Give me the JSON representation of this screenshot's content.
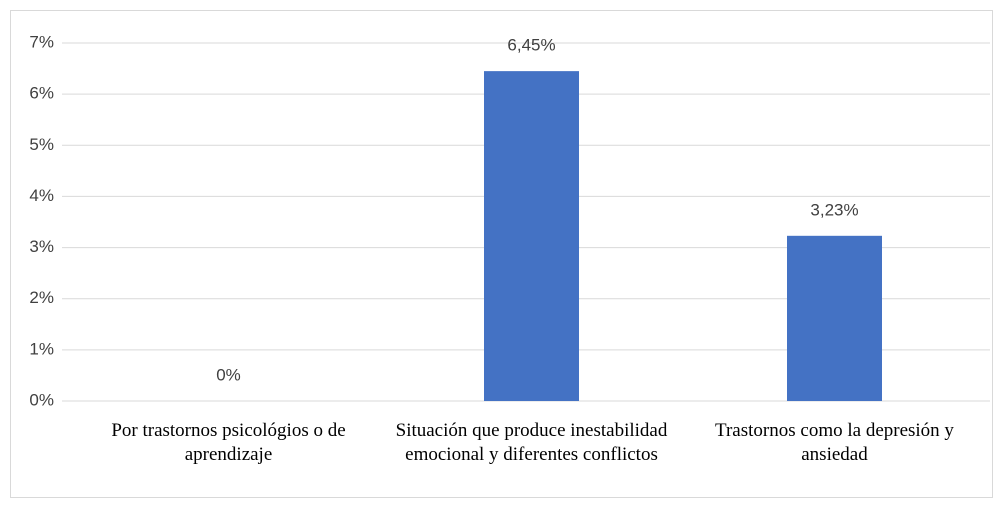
{
  "chart_data": {
    "type": "bar",
    "categories": [
      "Por trastornos psicológios o de aprendizaje",
      "Situación que produce inestabilidad emocional y diferentes conflictos",
      "Trastornos como la depresión y ansiedad"
    ],
    "values": [
      0,
      6.45,
      3.23
    ],
    "value_labels": [
      "0%",
      "6,45%",
      "3,23%"
    ],
    "color": "#4472c4",
    "ylim": [
      0,
      7
    ],
    "yticks": [
      {
        "value": 0,
        "label": "0%"
      },
      {
        "value": 1,
        "label": "1%"
      },
      {
        "value": 2,
        "label": "2%"
      },
      {
        "value": 3,
        "label": "3%"
      },
      {
        "value": 4,
        "label": "4%"
      },
      {
        "value": 5,
        "label": "5%"
      },
      {
        "value": 6,
        "label": "6%"
      },
      {
        "value": 7,
        "label": "7%"
      }
    ],
    "grid": true
  }
}
